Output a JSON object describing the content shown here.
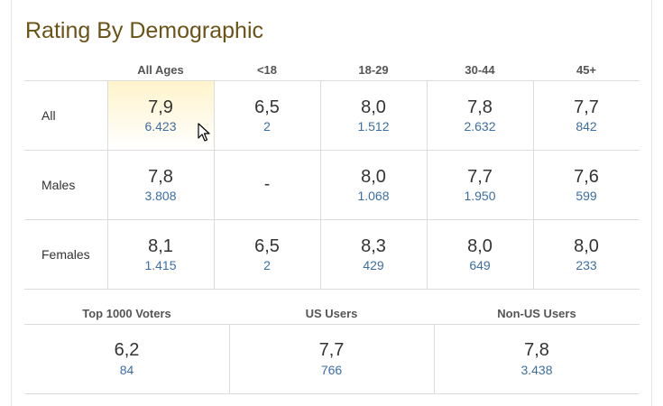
{
  "title": "Rating By Demographic",
  "age_columns": [
    "All Ages",
    "<18",
    "18-29",
    "30-44",
    "45+"
  ],
  "rows": [
    {
      "label": "All",
      "cells": [
        {
          "rating": "7,9",
          "votes": "6.423"
        },
        {
          "rating": "6,5",
          "votes": "2"
        },
        {
          "rating": "8,0",
          "votes": "1.512"
        },
        {
          "rating": "7,8",
          "votes": "2.632"
        },
        {
          "rating": "7,7",
          "votes": "842"
        }
      ]
    },
    {
      "label": "Males",
      "cells": [
        {
          "rating": "7,8",
          "votes": "3.808"
        },
        {
          "rating": "-",
          "votes": ""
        },
        {
          "rating": "8,0",
          "votes": "1.068"
        },
        {
          "rating": "7,7",
          "votes": "1.950"
        },
        {
          "rating": "7,6",
          "votes": "599"
        }
      ]
    },
    {
      "label": "Females",
      "cells": [
        {
          "rating": "8,1",
          "votes": "1.415"
        },
        {
          "rating": "6,5",
          "votes": "2"
        },
        {
          "rating": "8,3",
          "votes": "429"
        },
        {
          "rating": "8,0",
          "votes": "649"
        },
        {
          "rating": "8,0",
          "votes": "233"
        }
      ]
    }
  ],
  "other_groups": [
    {
      "label": "Top 1000 Voters",
      "rating": "6,2",
      "votes": "84"
    },
    {
      "label": "US Users",
      "rating": "7,7",
      "votes": "766"
    },
    {
      "label": "Non-US Users",
      "rating": "7,8",
      "votes": "3.438"
    }
  ],
  "colors": {
    "title": "#6b5217",
    "count_link": "#3b6ea5",
    "highlight": "#fff4cc"
  }
}
